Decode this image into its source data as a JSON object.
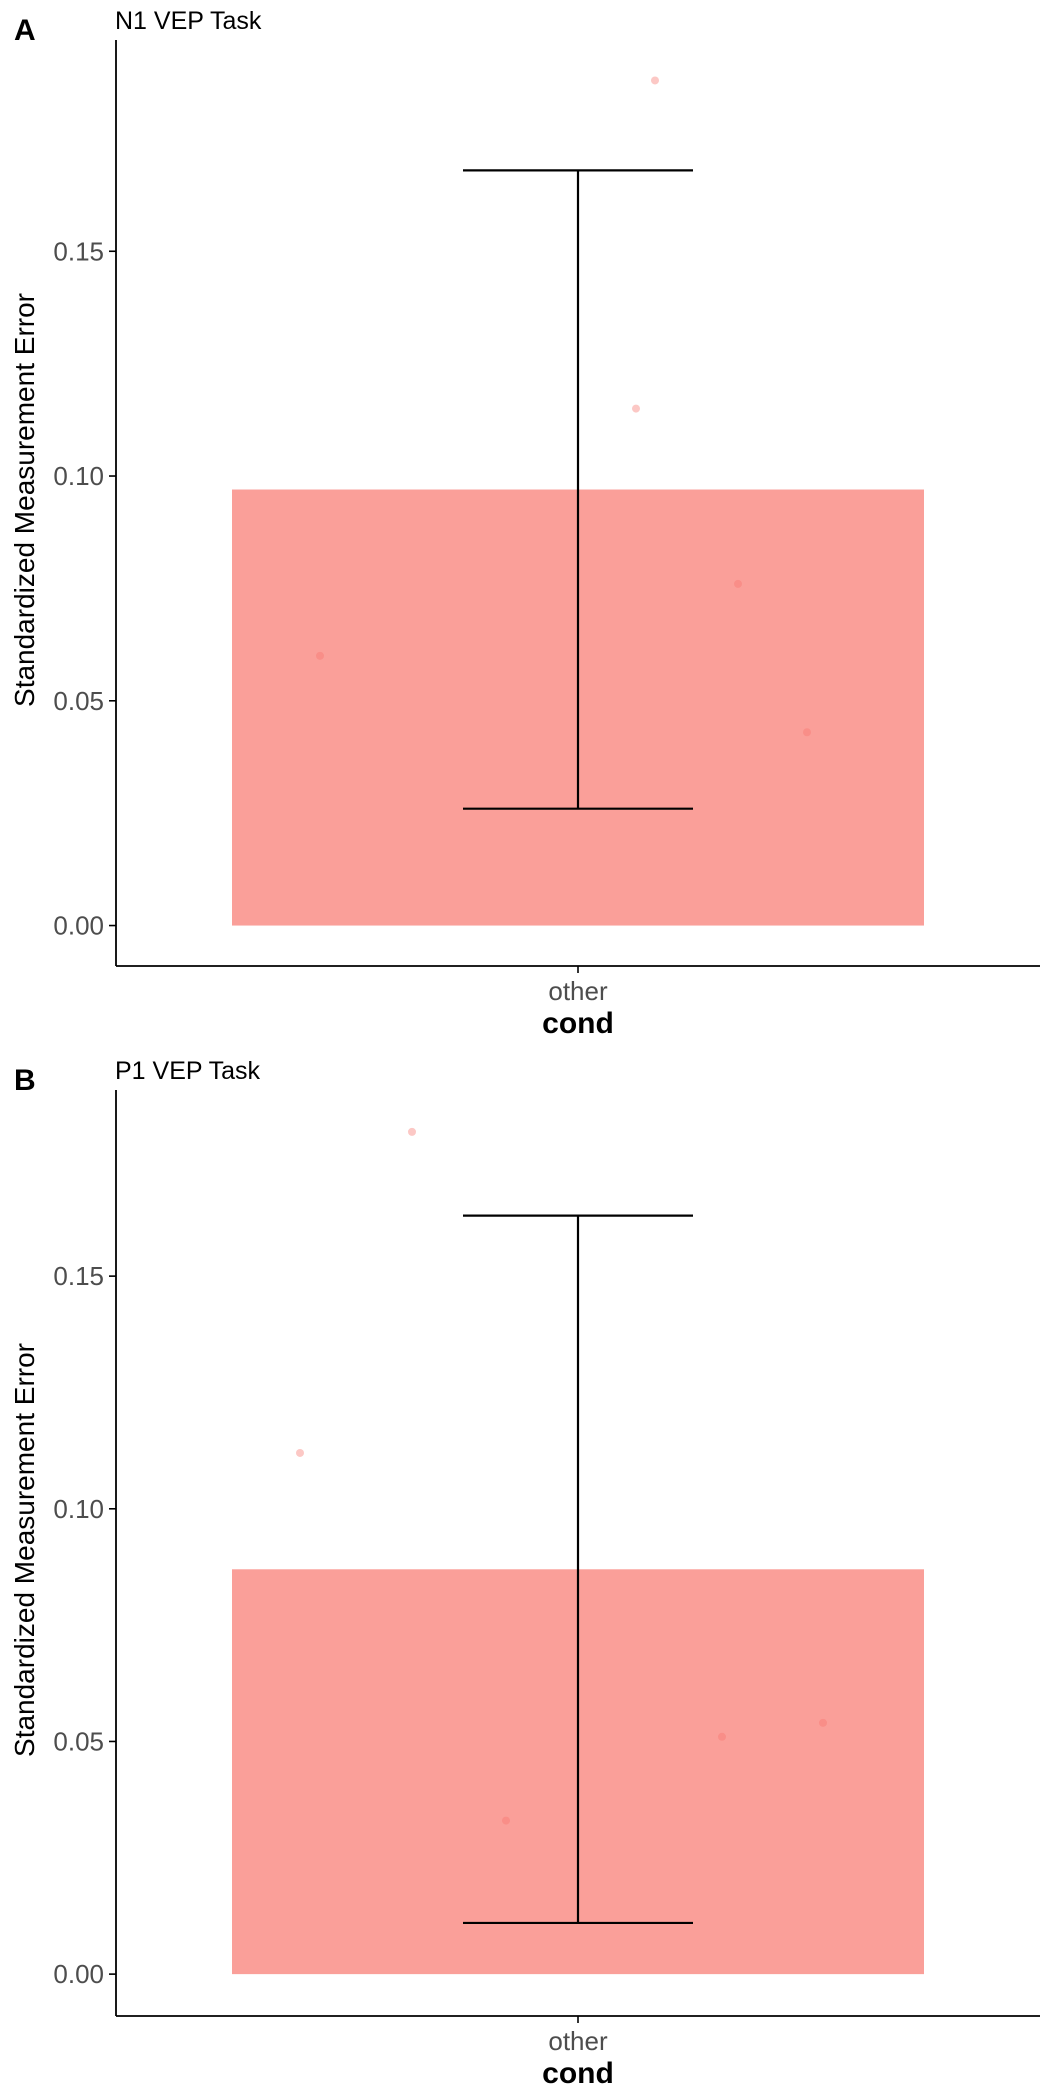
{
  "colors": {
    "bar_fill": "#f8766d",
    "bar_alpha": 0.7,
    "point_fill": "#f8766d",
    "point_alpha": 0.4,
    "axis": "#000000",
    "tick_text": "#4d4d4d",
    "errorbar": "#000000"
  },
  "chart_data": [
    {
      "type": "bar",
      "panel_label": "A",
      "title": "N1 VEP Task",
      "xlabel": "cond",
      "ylabel": "Standardized Measurement Error",
      "categories": [
        "other"
      ],
      "values": [
        0.097
      ],
      "error_bars": [
        {
          "lower": 0.026,
          "upper": 0.168
        }
      ],
      "points": [
        0.06,
        0.115,
        0.076,
        0.043,
        0.188
      ],
      "ylim": [
        -0.009,
        0.197
      ],
      "yticks": [
        0.0,
        0.05,
        0.1,
        0.15
      ],
      "ytick_labels": [
        "0.00",
        "0.05",
        "0.10",
        "0.15"
      ],
      "grid": false,
      "legend": "none"
    },
    {
      "type": "bar",
      "panel_label": "B",
      "title": "P1 VEP Task",
      "xlabel": "cond",
      "ylabel": "Standardized Measurement Error",
      "categories": [
        "other"
      ],
      "values": [
        0.087
      ],
      "error_bars": [
        {
          "lower": 0.011,
          "upper": 0.163
        }
      ],
      "points": [
        0.112,
        0.181,
        0.033,
        0.051,
        0.054
      ],
      "ylim": [
        -0.009,
        0.19
      ],
      "yticks": [
        0.0,
        0.05,
        0.1,
        0.15
      ],
      "ytick_labels": [
        "0.00",
        "0.05",
        "0.10",
        "0.15"
      ],
      "grid": false,
      "legend": "none"
    }
  ]
}
